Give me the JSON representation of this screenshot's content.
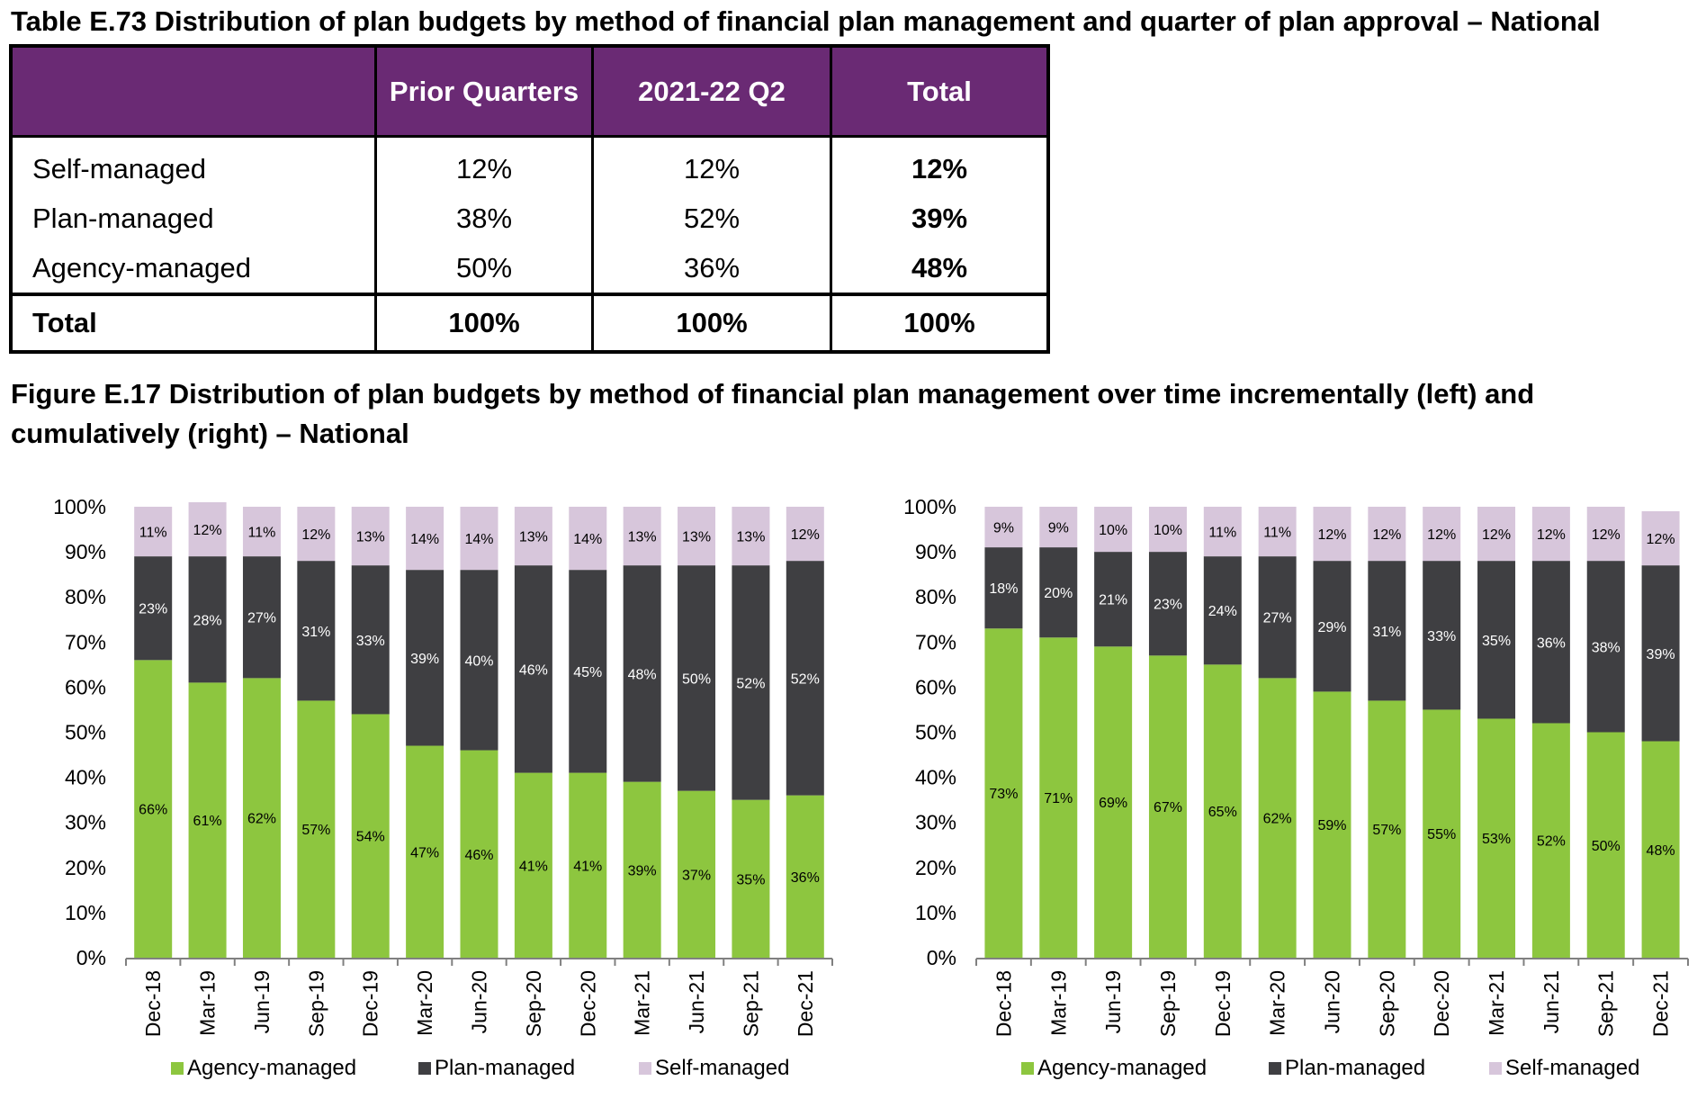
{
  "table": {
    "title": "Table E.73 Distribution of plan budgets by method of financial plan management and quarter of plan approval – National",
    "headers": [
      "",
      "Prior Quarters",
      "2021-22 Q2",
      "Total"
    ],
    "rows": [
      {
        "label": "Self-managed",
        "values": [
          "12%",
          "12%",
          "12%"
        ]
      },
      {
        "label": "Plan-managed",
        "values": [
          "38%",
          "52%",
          "39%"
        ]
      },
      {
        "label": "Agency-managed",
        "values": [
          "50%",
          "36%",
          "48%"
        ]
      }
    ],
    "total_row": {
      "label": "Total",
      "values": [
        "100%",
        "100%",
        "100%"
      ]
    }
  },
  "figure": {
    "title": "Figure E.17 Distribution of plan budgets by method of financial plan management over time incrementally (left) and cumulatively (right) – National"
  },
  "colors": {
    "agency": "#8dc63f",
    "plan": "#3f3f42",
    "self": "#d7c6db",
    "table_header": "#6a2a74"
  },
  "chart_data": [
    {
      "type": "bar",
      "stacked": true,
      "categories": [
        "Dec-18",
        "Mar-19",
        "Jun-19",
        "Sep-19",
        "Dec-19",
        "Mar-20",
        "Jun-20",
        "Sep-20",
        "Dec-20",
        "Mar-21",
        "Jun-21",
        "Sep-21",
        "Dec-21"
      ],
      "series": [
        {
          "name": "Agency-managed",
          "values": [
            66,
            61,
            62,
            57,
            54,
            47,
            46,
            41,
            41,
            39,
            37,
            35,
            36
          ]
        },
        {
          "name": "Plan-managed",
          "values": [
            23,
            28,
            27,
            31,
            33,
            39,
            40,
            46,
            45,
            48,
            50,
            52,
            52
          ]
        },
        {
          "name": "Self-managed",
          "values": [
            11,
            12,
            11,
            12,
            13,
            14,
            14,
            13,
            14,
            13,
            13,
            13,
            12
          ]
        }
      ],
      "yticks": [
        "0%",
        "10%",
        "20%",
        "30%",
        "40%",
        "50%",
        "60%",
        "70%",
        "80%",
        "90%",
        "100%"
      ],
      "ylim": [
        0,
        100
      ],
      "legend_position": "bottom"
    },
    {
      "type": "bar",
      "stacked": true,
      "categories": [
        "Dec-18",
        "Mar-19",
        "Jun-19",
        "Sep-19",
        "Dec-19",
        "Mar-20",
        "Jun-20",
        "Sep-20",
        "Dec-20",
        "Mar-21",
        "Jun-21",
        "Sep-21",
        "Dec-21"
      ],
      "series": [
        {
          "name": "Agency-managed",
          "values": [
            73,
            71,
            69,
            67,
            65,
            62,
            59,
            57,
            55,
            53,
            52,
            50,
            48
          ]
        },
        {
          "name": "Plan-managed",
          "values": [
            18,
            20,
            21,
            23,
            24,
            27,
            29,
            31,
            33,
            35,
            36,
            38,
            39
          ]
        },
        {
          "name": "Self-managed",
          "values": [
            9,
            9,
            10,
            10,
            11,
            11,
            12,
            12,
            12,
            12,
            12,
            12,
            12
          ]
        }
      ],
      "yticks": [
        "0%",
        "10%",
        "20%",
        "30%",
        "40%",
        "50%",
        "60%",
        "70%",
        "80%",
        "90%",
        "100%"
      ],
      "ylim": [
        0,
        100
      ],
      "legend_position": "bottom"
    }
  ]
}
